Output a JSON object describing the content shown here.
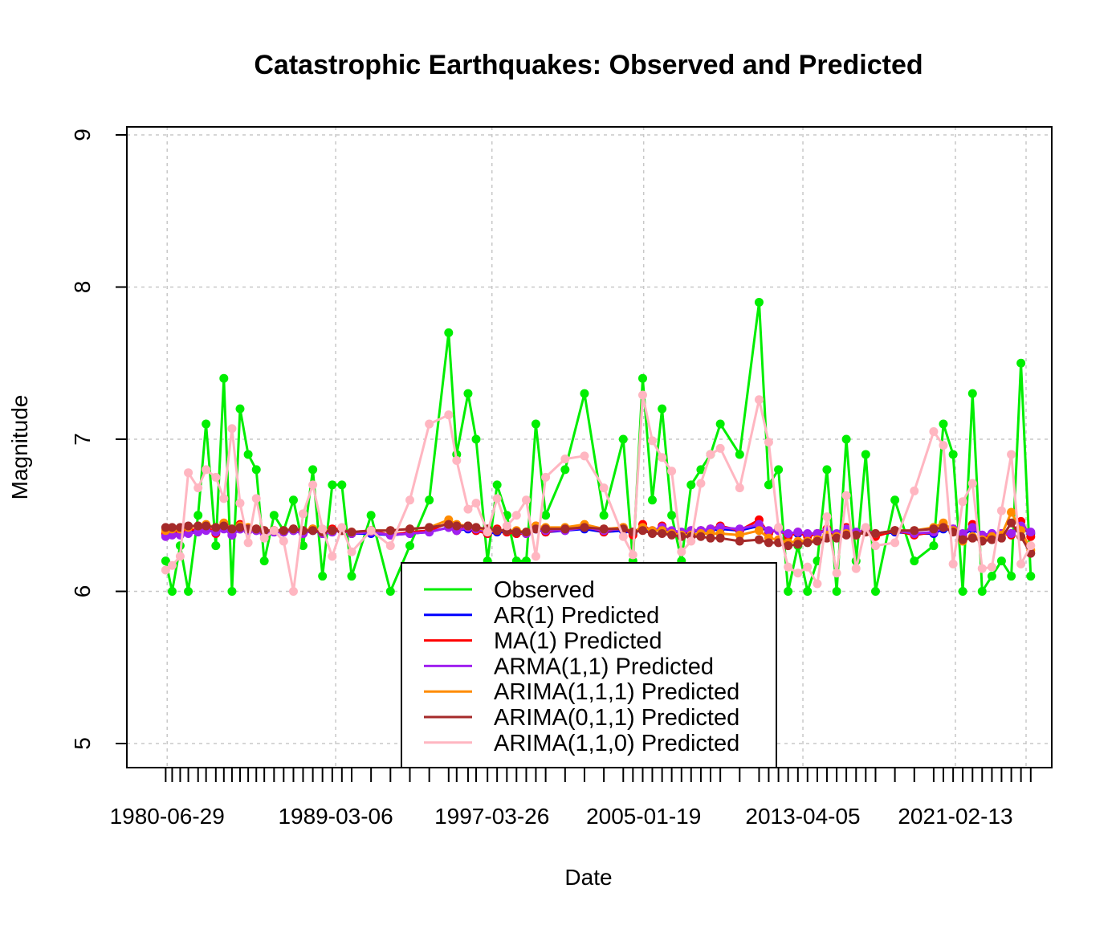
{
  "chart_data": {
    "type": "line",
    "title": "Catastrophic Earthquakes: Observed and Predicted",
    "xlabel": "Date",
    "ylabel": "Magnitude",
    "ylim": [
      5,
      9
    ],
    "xlim": [
      "1978-06-01",
      "2026-02-01"
    ],
    "grid": true,
    "legend_position": "bottom-center",
    "x_tick_labels": [
      "1980-06-29",
      "1989-03-06",
      "1997-03-26",
      "2005-01-19",
      "2013-04-05",
      "2021-02-13"
    ],
    "y_ticks": [
      5,
      6,
      7,
      8,
      9
    ],
    "x": [
      "1980-06-01",
      "1980-10-01",
      "1981-03-01",
      "1981-08-01",
      "1982-02-01",
      "1982-07-01",
      "1983-01-01",
      "1983-06-01",
      "1983-11-01",
      "1984-04-01",
      "1984-09-01",
      "1985-02-01",
      "1985-07-01",
      "1986-01-01",
      "1986-07-01",
      "1987-01-01",
      "1987-07-01",
      "1988-01-01",
      "1988-07-01",
      "1989-01-01",
      "1989-07-01",
      "1990-01-01",
      "1991-01-01",
      "1992-01-01",
      "1993-01-01",
      "1994-01-01",
      "1995-01-01",
      "1995-06-01",
      "1996-01-01",
      "1996-06-01",
      "1997-01-01",
      "1997-07-01",
      "1998-01-01",
      "1998-07-01",
      "1999-01-01",
      "1999-07-01",
      "2000-01-01",
      "2001-01-01",
      "2002-01-01",
      "2003-01-01",
      "2004-01-01",
      "2004-07-01",
      "2005-01-01",
      "2005-07-01",
      "2006-01-01",
      "2006-07-01",
      "2007-01-01",
      "2007-07-01",
      "2008-01-01",
      "2008-07-01",
      "2009-01-01",
      "2010-01-01",
      "2011-01-01",
      "2011-07-01",
      "2012-01-01",
      "2012-07-01",
      "2013-01-01",
      "2013-07-01",
      "2014-01-01",
      "2014-07-01",
      "2015-01-01",
      "2015-07-01",
      "2016-01-01",
      "2016-07-01",
      "2017-01-01",
      "2018-01-01",
      "2019-01-01",
      "2020-01-01",
      "2020-07-01",
      "2021-01-01",
      "2021-07-01",
      "2022-01-01",
      "2022-07-01",
      "2023-01-01",
      "2023-07-01",
      "2024-01-01",
      "2024-07-01",
      "2025-01-01"
    ],
    "series": [
      {
        "name": "Observed",
        "color": "#00ee00",
        "values": [
          6.2,
          6.0,
          6.3,
          6.0,
          6.5,
          7.1,
          6.3,
          7.4,
          6.0,
          7.2,
          6.9,
          6.8,
          6.2,
          6.5,
          6.4,
          6.6,
          6.3,
          6.8,
          6.1,
          6.7,
          6.7,
          6.1,
          6.5,
          6.0,
          6.3,
          6.6,
          7.7,
          6.9,
          7.3,
          7.0,
          6.2,
          6.7,
          6.5,
          6.2,
          6.2,
          7.1,
          6.5,
          6.8,
          7.3,
          6.5,
          7.0,
          6.2,
          7.4,
          6.6,
          7.2,
          6.5,
          6.2,
          6.7,
          6.8,
          6.9,
          7.1,
          6.9,
          7.9,
          6.7,
          6.8,
          6.0,
          6.3,
          6.0,
          6.2,
          6.8,
          6.0,
          7.0,
          6.2,
          6.9,
          6.0,
          6.6,
          6.2,
          6.3,
          7.1,
          6.9,
          6.0,
          7.3,
          6.0,
          6.1,
          6.2,
          6.1,
          7.5,
          6.1
        ]
      },
      {
        "name": "AR(1) Predicted",
        "color": "#0000ff",
        "values": [
          6.37,
          6.38,
          6.38,
          6.39,
          6.4,
          6.41,
          6.39,
          6.42,
          6.37,
          6.41,
          6.4,
          6.4,
          6.38,
          6.39,
          6.39,
          6.4,
          6.38,
          6.4,
          6.38,
          6.39,
          6.4,
          6.38,
          6.38,
          6.37,
          6.38,
          6.39,
          6.42,
          6.4,
          6.41,
          6.4,
          6.38,
          6.39,
          6.39,
          6.38,
          6.38,
          6.41,
          6.39,
          6.4,
          6.41,
          6.39,
          6.4,
          6.38,
          6.41,
          6.39,
          6.41,
          6.39,
          6.38,
          6.39,
          6.4,
          6.4,
          6.41,
          6.4,
          6.43,
          6.39,
          6.4,
          6.37,
          6.38,
          6.37,
          6.38,
          6.4,
          6.37,
          6.4,
          6.38,
          6.4,
          6.37,
          6.39,
          6.38,
          6.38,
          6.41,
          6.4,
          6.37,
          6.41,
          6.37,
          6.38,
          6.38,
          6.38,
          6.42,
          6.38
        ]
      },
      {
        "name": "MA(1) Predicted",
        "color": "#ff0000",
        "values": [
          6.38,
          6.4,
          6.39,
          6.41,
          6.4,
          6.43,
          6.38,
          6.44,
          6.37,
          6.44,
          6.4,
          6.41,
          6.38,
          6.4,
          6.39,
          6.41,
          6.38,
          6.41,
          6.38,
          6.41,
          6.41,
          6.38,
          6.4,
          6.37,
          6.39,
          6.4,
          6.45,
          6.4,
          6.43,
          6.4,
          6.38,
          6.41,
          6.39,
          6.38,
          6.38,
          6.43,
          6.39,
          6.41,
          6.43,
          6.39,
          6.42,
          6.37,
          6.44,
          6.39,
          6.43,
          6.39,
          6.38,
          6.4,
          6.4,
          6.41,
          6.43,
          6.4,
          6.47,
          6.38,
          6.41,
          6.36,
          6.39,
          6.36,
          6.38,
          6.41,
          6.36,
          6.42,
          6.37,
          6.41,
          6.36,
          6.4,
          6.37,
          6.39,
          6.43,
          6.41,
          6.36,
          6.44,
          6.35,
          6.37,
          6.38,
          6.37,
          6.46,
          6.36
        ]
      },
      {
        "name": "ARMA(1,1) Predicted",
        "color": "#a020f0",
        "values": [
          6.36,
          6.37,
          6.37,
          6.38,
          6.39,
          6.4,
          6.39,
          6.41,
          6.37,
          6.41,
          6.4,
          6.4,
          6.38,
          6.39,
          6.39,
          6.4,
          6.38,
          6.4,
          6.38,
          6.39,
          6.4,
          6.38,
          6.39,
          6.37,
          6.38,
          6.39,
          6.42,
          6.4,
          6.42,
          6.41,
          6.39,
          6.4,
          6.4,
          6.39,
          6.38,
          6.41,
          6.4,
          6.4,
          6.42,
          6.4,
          6.41,
          6.39,
          6.42,
          6.4,
          6.42,
          6.4,
          6.39,
          6.4,
          6.4,
          6.41,
          6.42,
          6.41,
          6.44,
          6.4,
          6.4,
          6.38,
          6.39,
          6.38,
          6.38,
          6.4,
          6.38,
          6.41,
          6.39,
          6.4,
          6.38,
          6.4,
          6.38,
          6.39,
          6.42,
          6.41,
          6.38,
          6.42,
          6.37,
          6.38,
          6.38,
          6.38,
          6.43,
          6.39
        ]
      },
      {
        "name": "ARIMA(1,1,1) Predicted",
        "color": "#ff8c00",
        "values": [
          6.4,
          6.41,
          6.41,
          6.42,
          6.43,
          6.44,
          6.42,
          6.45,
          6.41,
          6.43,
          6.42,
          6.41,
          6.4,
          6.4,
          6.4,
          6.41,
          6.4,
          6.41,
          6.4,
          6.4,
          6.4,
          6.39,
          6.4,
          6.4,
          6.41,
          6.42,
          6.47,
          6.44,
          6.43,
          6.42,
          6.4,
          6.4,
          6.4,
          6.4,
          6.39,
          6.43,
          6.42,
          6.42,
          6.44,
          6.41,
          6.42,
          6.39,
          6.42,
          6.4,
          6.4,
          6.38,
          6.37,
          6.37,
          6.38,
          6.38,
          6.38,
          6.37,
          6.4,
          6.35,
          6.34,
          6.32,
          6.33,
          6.33,
          6.34,
          6.37,
          6.36,
          6.38,
          6.37,
          6.39,
          6.38,
          6.4,
          6.4,
          6.42,
          6.45,
          6.4,
          6.33,
          6.36,
          6.34,
          6.36,
          6.37,
          6.52,
          6.4,
          6.27
        ]
      },
      {
        "name": "ARIMA(0,1,1) Predicted",
        "color": "#a52a2a",
        "values": [
          6.42,
          6.42,
          6.42,
          6.43,
          6.43,
          6.43,
          6.42,
          6.43,
          6.41,
          6.42,
          6.41,
          6.41,
          6.4,
          6.4,
          6.4,
          6.41,
          6.4,
          6.4,
          6.39,
          6.4,
          6.4,
          6.39,
          6.4,
          6.4,
          6.41,
          6.42,
          6.44,
          6.43,
          6.43,
          6.42,
          6.41,
          6.4,
          6.4,
          6.39,
          6.39,
          6.41,
          6.41,
          6.41,
          6.42,
          6.41,
          6.41,
          6.39,
          6.4,
          6.38,
          6.38,
          6.37,
          6.36,
          6.36,
          6.36,
          6.35,
          6.35,
          6.33,
          6.34,
          6.32,
          6.32,
          6.3,
          6.31,
          6.32,
          6.33,
          6.35,
          6.35,
          6.37,
          6.37,
          6.39,
          6.38,
          6.4,
          6.4,
          6.41,
          6.42,
          6.39,
          6.34,
          6.35,
          6.33,
          6.34,
          6.35,
          6.45,
          6.36,
          6.25
        ]
      },
      {
        "name": "ARIMA(1,1,0) Predicted",
        "color": "#ffb6c1",
        "values": [
          6.14,
          6.17,
          6.23,
          6.78,
          6.68,
          6.8,
          6.75,
          6.61,
          7.07,
          6.58,
          6.32,
          6.61,
          6.35,
          6.4,
          6.33,
          6.0,
          6.51,
          6.7,
          6.41,
          6.23,
          6.42,
          6.26,
          6.4,
          6.3,
          6.6,
          7.1,
          7.16,
          6.86,
          6.54,
          6.58,
          6.39,
          6.61,
          6.43,
          6.5,
          6.6,
          6.23,
          6.75,
          6.87,
          6.89,
          6.68,
          6.36,
          6.24,
          7.29,
          6.99,
          6.88,
          6.79,
          6.26,
          6.33,
          6.71,
          6.9,
          6.94,
          6.68,
          7.26,
          6.98,
          6.42,
          6.16,
          6.12,
          6.16,
          6.05,
          6.49,
          6.12,
          6.63,
          6.15,
          6.42,
          6.3,
          6.32,
          6.66,
          7.05,
          6.96,
          6.18,
          6.59,
          6.71,
          6.15,
          6.16,
          6.53,
          6.9,
          6.18,
          6.3
        ]
      }
    ]
  }
}
